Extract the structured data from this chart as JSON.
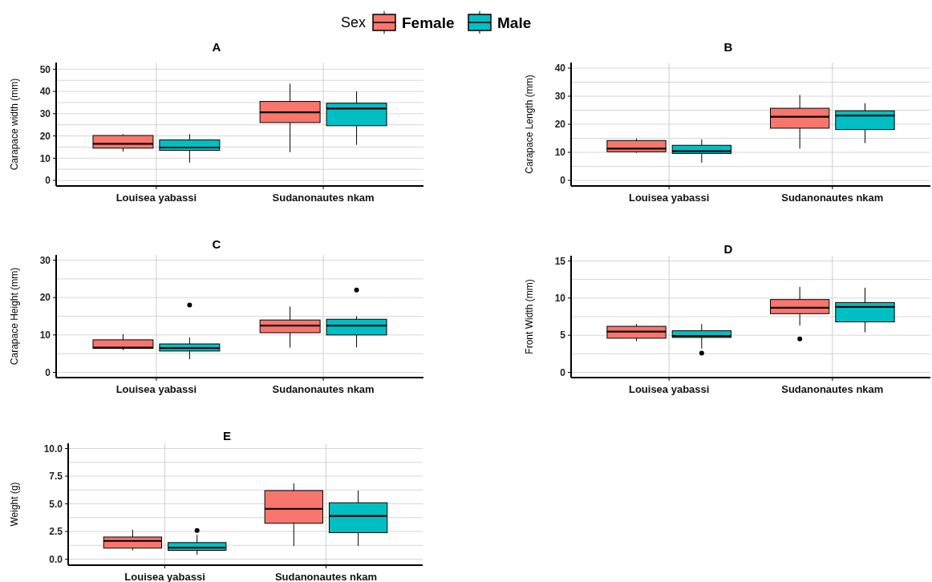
{
  "chart_data": [
    {
      "type": "box",
      "title": "A",
      "ylabel": "Carapace width (mm)",
      "categories": [
        "Louisea yabassi",
        "Sudanonautes nkam"
      ],
      "ylim": [
        -2.5,
        53
      ],
      "yticks": [
        0,
        10,
        20,
        30,
        40,
        50
      ],
      "grid": true,
      "legend": "top",
      "legend_title": "Sex",
      "series": [
        {
          "name": "Female",
          "color": "#f8766d",
          "boxes": [
            {
              "low": 13,
              "q1": 14.5,
              "median": 16.5,
              "q3": 20.2,
              "high": 20.8
            },
            {
              "low": 12.7,
              "q1": 26,
              "median": 30.6,
              "q3": 35.5,
              "high": 43.5
            }
          ]
        },
        {
          "name": "Male",
          "color": "#00bfc4",
          "boxes": [
            {
              "low": 8,
              "q1": 13.5,
              "median": 14.8,
              "q3": 18.2,
              "high": 20.8
            },
            {
              "low": 16,
              "q1": 24.6,
              "median": 32.3,
              "q3": 34.7,
              "high": 40
            }
          ]
        }
      ]
    },
    {
      "type": "box",
      "title": "B",
      "ylabel": "Carapace Length (mm)",
      "categories": [
        "Louisea yabassi",
        "Sudanonautes nkam"
      ],
      "ylim": [
        -2,
        42
      ],
      "yticks": [
        0,
        10,
        20,
        30,
        40
      ],
      "grid": true,
      "series": [
        {
          "name": "Female",
          "color": "#f8766d",
          "boxes": [
            {
              "low": 9.8,
              "q1": 10.2,
              "median": 11.3,
              "q3": 14.2,
              "high": 14.9
            },
            {
              "low": 11.3,
              "q1": 18.6,
              "median": 22.7,
              "q3": 25.7,
              "high": 30.4
            }
          ]
        },
        {
          "name": "Male",
          "color": "#00bfc4",
          "boxes": [
            {
              "low": 6.3,
              "q1": 9.6,
              "median": 10.4,
              "q3": 12.5,
              "high": 14.6
            },
            {
              "low": 13.3,
              "q1": 18.1,
              "median": 23.1,
              "q3": 24.8,
              "high": 27.5
            }
          ]
        }
      ]
    },
    {
      "type": "box",
      "title": "C",
      "ylabel": "Carapace Height (mm)",
      "categories": [
        "Louisea yabassi",
        "Sudanonautes nkam"
      ],
      "ylim": [
        -1.4,
        31.4
      ],
      "yticks": [
        0,
        10,
        20,
        30
      ],
      "grid": true,
      "series": [
        {
          "name": "Female",
          "color": "#f8766d",
          "boxes": [
            {
              "low": 5.9,
              "q1": 6.4,
              "median": 6.6,
              "q3": 8.7,
              "high": 10.2
            },
            {
              "low": 6.6,
              "q1": 10.6,
              "median": 12.5,
              "q3": 14,
              "high": 17.6
            }
          ]
        },
        {
          "name": "Male",
          "color": "#00bfc4",
          "boxes": [
            {
              "low": 3.5,
              "q1": 5.7,
              "median": 6.5,
              "q3": 7.6,
              "high": 9.3,
              "outliers": [
                18
              ]
            },
            {
              "low": 6.7,
              "q1": 10,
              "median": 12.5,
              "q3": 14.2,
              "high": 15,
              "outliers": [
                22
              ]
            }
          ]
        }
      ]
    },
    {
      "type": "box",
      "title": "D",
      "ylabel": "Front Width (mm)",
      "categories": [
        "Louisea yabassi",
        "Sudanonautes nkam"
      ],
      "ylim": [
        -0.7,
        15.7
      ],
      "yticks": [
        0,
        5,
        10,
        15
      ],
      "grid": true,
      "series": [
        {
          "name": "Female",
          "color": "#f8766d",
          "boxes": [
            {
              "low": 4.2,
              "q1": 4.6,
              "median": 5.5,
              "q3": 6.2,
              "high": 6.5
            },
            {
              "low": 6.3,
              "q1": 7.9,
              "median": 8.7,
              "q3": 9.8,
              "high": 11.5,
              "outliers": [
                4.5
              ]
            }
          ]
        },
        {
          "name": "Male",
          "color": "#00bfc4",
          "boxes": [
            {
              "low": 3.2,
              "q1": 4.7,
              "median": 4.9,
              "q3": 5.6,
              "high": 6.5,
              "outliers": [
                2.6
              ]
            },
            {
              "low": 5.4,
              "q1": 6.8,
              "median": 8.8,
              "q3": 9.4,
              "high": 11.4
            }
          ]
        }
      ]
    },
    {
      "type": "box",
      "title": "E",
      "ylabel": "Weight (g)",
      "categories": [
        "Louisea yabassi",
        "Sudanonautes nkam"
      ],
      "ylim": [
        -0.54,
        10.47
      ],
      "yticks": [
        {
          "value": 0,
          "label": "0.0"
        },
        {
          "value": 2.5,
          "label": "2.5"
        },
        {
          "value": 5,
          "label": "5.0"
        },
        {
          "value": 7.5,
          "label": "7.5"
        },
        {
          "value": 10,
          "label": "10.0"
        }
      ],
      "grid": true,
      "series": [
        {
          "name": "Female",
          "color": "#f8766d",
          "boxes": [
            {
              "low": 0.8,
              "q1": 1,
              "median": 1.65,
              "q3": 2,
              "high": 2.65
            },
            {
              "low": 1.2,
              "q1": 3.25,
              "median": 4.55,
              "q3": 6.2,
              "high": 6.85
            }
          ]
        },
        {
          "name": "Male",
          "color": "#00bfc4",
          "boxes": [
            {
              "low": 0.4,
              "q1": 0.8,
              "median": 1.05,
              "q3": 1.5,
              "high": 2.2,
              "outliers": [
                2.6
              ]
            },
            {
              "low": 1.2,
              "q1": 2.4,
              "median": 3.9,
              "q3": 5.1,
              "high": 6.2
            }
          ]
        }
      ]
    }
  ]
}
